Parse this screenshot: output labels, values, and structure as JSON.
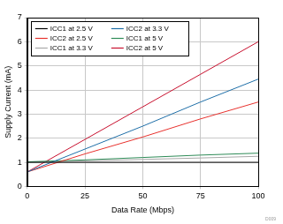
{
  "chart_data": {
    "type": "line",
    "x_label": "Data Rate (Mbps)",
    "y_label": "Supply Current (mA)",
    "x": [
      0,
      25,
      50,
      75,
      100
    ],
    "series": [
      {
        "name": "ICC1 at 2.5 V",
        "color": "#000000",
        "values": [
          1.0,
          1.0,
          1.0,
          1.0,
          1.0
        ]
      },
      {
        "name": "ICC2 at 3.3 V",
        "color": "#1f6fa8",
        "values": [
          0.6,
          1.55,
          2.5,
          3.5,
          4.45
        ]
      },
      {
        "name": "ICC2 at 2.5 V",
        "color": "#e8322e",
        "values": [
          0.6,
          1.35,
          2.05,
          2.8,
          3.5
        ]
      },
      {
        "name": "ICC1 at 5 V",
        "color": "#2e8b57",
        "values": [
          1.02,
          1.1,
          1.2,
          1.3,
          1.38
        ]
      },
      {
        "name": "ICC1 at 3.3 V",
        "color": "#a8a8a8",
        "values": [
          1.0,
          1.06,
          1.12,
          1.18,
          1.25
        ]
      },
      {
        "name": "ICC2 at 5 V",
        "color": "#c8102e",
        "values": [
          0.6,
          1.95,
          3.3,
          4.65,
          6.0
        ]
      }
    ],
    "xlim": [
      0,
      100
    ],
    "xticks": [
      0,
      25,
      50,
      75,
      100
    ],
    "ylim": [
      0,
      7
    ],
    "yticks": [
      0,
      1,
      2,
      3,
      4,
      5,
      6,
      7
    ],
    "grid": true,
    "legend": "upper left",
    "annotations": [
      "D009"
    ]
  }
}
